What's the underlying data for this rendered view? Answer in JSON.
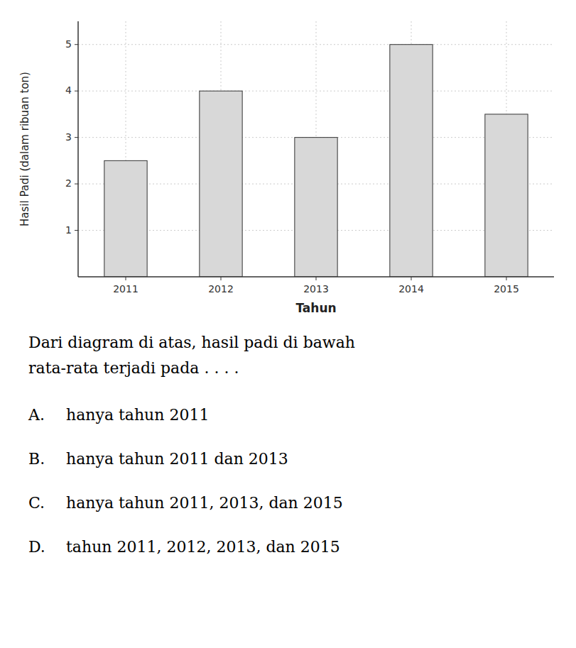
{
  "chart_data": {
    "type": "bar",
    "xlabel": "Tahun",
    "ylabel": "Hasil Padi (dalam ribuan ton)",
    "categories": [
      "2011",
      "2012",
      "2013",
      "2014",
      "2015"
    ],
    "values": [
      2.5,
      4.0,
      3.0,
      5.0,
      3.5
    ],
    "color": "#d8d8d8",
    "ylim": [
      0,
      5.5
    ],
    "yticks": [
      1,
      2,
      3,
      4,
      5
    ],
    "grid": true,
    "annotations": [
      [
        "Dari diagram di atas, hasil padi di bawah"
      ],
      [
        "rata-rata terjadi pada . . . ."
      ],
      [
        "A.",
        "hanya tahun 2011"
      ],
      [
        "B.",
        "hanya tahun 2011 dan 2013"
      ],
      [
        "C.",
        "hanya tahun 2011, 2013, dan 2015"
      ],
      [
        "D.",
        "tahun 2011, 2012, 2013, dan 2015"
      ]
    ]
  }
}
